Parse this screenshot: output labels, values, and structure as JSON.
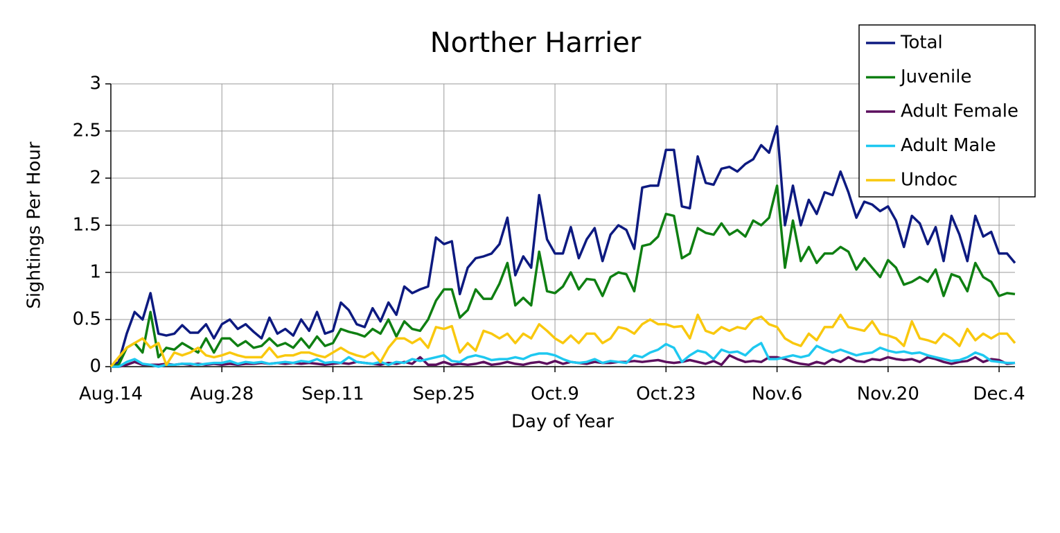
{
  "chart_data": {
    "type": "line",
    "title": "Norther Harrier",
    "x_label": "Day of Year",
    "y_label": "Sightings Per Hour",
    "categories": [
      "Aug.14",
      null,
      null,
      null,
      null,
      null,
      null,
      null,
      null,
      null,
      null,
      null,
      null,
      null,
      "Aug.28",
      null,
      null,
      null,
      null,
      null,
      null,
      null,
      null,
      null,
      null,
      null,
      null,
      null,
      "Sep.11",
      null,
      null,
      null,
      null,
      null,
      null,
      null,
      null,
      null,
      null,
      null,
      null,
      null,
      "Sep.25",
      null,
      null,
      null,
      null,
      null,
      null,
      null,
      null,
      null,
      null,
      null,
      null,
      null,
      "Oct.9",
      null,
      null,
      null,
      null,
      null,
      null,
      null,
      null,
      null,
      null,
      null,
      null,
      null,
      "Oct.23",
      null,
      null,
      null,
      null,
      null,
      null,
      null,
      null,
      null,
      null,
      null,
      null,
      null,
      "Nov.6",
      null,
      null,
      null,
      null,
      null,
      null,
      null,
      null,
      null,
      null,
      null,
      null,
      null,
      "Nov.20",
      null,
      null,
      null,
      null,
      null,
      null,
      null,
      null,
      null,
      null,
      null,
      null,
      null,
      "Dec.4",
      null,
      null
    ],
    "series": [
      {
        "name": "Total",
        "color": "#0d1a80",
        "values": [
          0,
          0.05,
          0.35,
          0.58,
          0.5,
          0.78,
          0.35,
          0.33,
          0.35,
          0.44,
          0.36,
          0.36,
          0.45,
          0.3,
          0.45,
          0.5,
          0.4,
          0.45,
          0.37,
          0.3,
          0.52,
          0.35,
          0.4,
          0.33,
          0.5,
          0.38,
          0.58,
          0.35,
          0.38,
          0.68,
          0.6,
          0.45,
          0.42,
          0.62,
          0.48,
          0.68,
          0.55,
          0.85,
          0.78,
          0.82,
          0.85,
          1.37,
          1.3,
          1.33,
          0.77,
          1.05,
          1.15,
          1.17,
          1.2,
          1.3,
          1.58,
          0.97,
          1.17,
          1.05,
          1.82,
          1.35,
          1.2,
          1.2,
          1.48,
          1.15,
          1.35,
          1.47,
          1.12,
          1.4,
          1.5,
          1.45,
          1.25,
          1.9,
          1.92,
          1.92,
          2.3,
          2.3,
          1.7,
          1.68,
          2.23,
          1.95,
          1.93,
          2.1,
          2.12,
          2.07,
          2.15,
          2.2,
          2.35,
          2.27,
          2.55,
          1.5,
          1.92,
          1.5,
          1.77,
          1.62,
          1.85,
          1.82,
          2.07,
          1.85,
          1.58,
          1.75,
          1.72,
          1.65,
          1.7,
          1.55,
          1.27,
          1.6,
          1.52,
          1.3,
          1.48,
          1.12,
          1.6,
          1.4,
          1.12,
          1.6,
          1.38,
          1.43,
          1.2,
          1.2,
          1.1
        ]
      },
      {
        "name": "Juvenile",
        "color": "#0f7f12",
        "values": [
          0,
          0.02,
          0.2,
          0.25,
          0.15,
          0.58,
          0.1,
          0.2,
          0.18,
          0.25,
          0.2,
          0.15,
          0.3,
          0.15,
          0.3,
          0.3,
          0.22,
          0.27,
          0.2,
          0.22,
          0.3,
          0.22,
          0.25,
          0.2,
          0.3,
          0.2,
          0.32,
          0.22,
          0.25,
          0.4,
          0.37,
          0.35,
          0.32,
          0.4,
          0.35,
          0.5,
          0.32,
          0.48,
          0.4,
          0.38,
          0.5,
          0.7,
          0.82,
          0.82,
          0.52,
          0.6,
          0.82,
          0.72,
          0.72,
          0.88,
          1.1,
          0.65,
          0.73,
          0.65,
          1.22,
          0.8,
          0.78,
          0.85,
          1.0,
          0.82,
          0.93,
          0.92,
          0.75,
          0.95,
          1.0,
          0.98,
          0.8,
          1.28,
          1.3,
          1.38,
          1.62,
          1.6,
          1.15,
          1.2,
          1.47,
          1.42,
          1.4,
          1.52,
          1.4,
          1.45,
          1.38,
          1.55,
          1.5,
          1.58,
          1.92,
          1.05,
          1.55,
          1.12,
          1.27,
          1.1,
          1.2,
          1.2,
          1.27,
          1.22,
          1.03,
          1.15,
          1.05,
          0.95,
          1.13,
          1.05,
          0.87,
          0.9,
          0.95,
          0.9,
          1.03,
          0.75,
          0.98,
          0.95,
          0.8,
          1.1,
          0.95,
          0.9,
          0.75,
          0.78,
          0.77
        ]
      },
      {
        "name": "Adult Female",
        "color": "#5c0f5e",
        "values": [
          0,
          0,
          0.02,
          0.05,
          0.02,
          0.02,
          0.02,
          0.03,
          0.02,
          0.03,
          0.02,
          0.03,
          0.02,
          0.03,
          0.02,
          0.03,
          0.02,
          0.03,
          0.03,
          0.04,
          0.03,
          0.04,
          0.03,
          0.04,
          0.03,
          0.04,
          0.03,
          0.02,
          0.03,
          0.04,
          0.03,
          0.05,
          0.04,
          0.03,
          0.02,
          0.04,
          0.03,
          0.05,
          0.03,
          0.1,
          0.02,
          0.02,
          0.05,
          0.02,
          0.03,
          0.02,
          0.03,
          0.05,
          0.02,
          0.03,
          0.05,
          0.03,
          0.02,
          0.04,
          0.05,
          0.03,
          0.06,
          0.03,
          0.05,
          0.04,
          0.03,
          0.05,
          0.04,
          0.04,
          0.05,
          0.05,
          0.06,
          0.05,
          0.06,
          0.07,
          0.05,
          0.04,
          0.05,
          0.07,
          0.05,
          0.03,
          0.06,
          0.02,
          0.12,
          0.08,
          0.05,
          0.06,
          0.05,
          0.1,
          0.1,
          0.08,
          0.05,
          0.03,
          0.02,
          0.05,
          0.03,
          0.08,
          0.05,
          0.1,
          0.06,
          0.05,
          0.08,
          0.07,
          0.1,
          0.08,
          0.07,
          0.08,
          0.05,
          0.1,
          0.08,
          0.05,
          0.03,
          0.05,
          0.06,
          0.1,
          0.05,
          0.08,
          0.07,
          0.03,
          0.04
        ]
      },
      {
        "name": "Adult Male",
        "color": "#1ec8f0",
        "values": [
          0,
          0,
          0.05,
          0.08,
          0.03,
          0.02,
          0,
          0.02,
          0.02,
          0.03,
          0.03,
          0.02,
          0.03,
          0.04,
          0.04,
          0.06,
          0.03,
          0.05,
          0.04,
          0.05,
          0.03,
          0.04,
          0.05,
          0.04,
          0.06,
          0.05,
          0.08,
          0.04,
          0.05,
          0.04,
          0.1,
          0.05,
          0.04,
          0.03,
          0.05,
          0.02,
          0.05,
          0.04,
          0.08,
          0.06,
          0.08,
          0.1,
          0.12,
          0.06,
          0.05,
          0.1,
          0.12,
          0.1,
          0.07,
          0.08,
          0.08,
          0.1,
          0.08,
          0.12,
          0.14,
          0.14,
          0.12,
          0.08,
          0.05,
          0.04,
          0.05,
          0.08,
          0.04,
          0.06,
          0.05,
          0.04,
          0.12,
          0.1,
          0.15,
          0.18,
          0.24,
          0.2,
          0.05,
          0.12,
          0.17,
          0.15,
          0.08,
          0.18,
          0.15,
          0.16,
          0.12,
          0.2,
          0.25,
          0.08,
          0.08,
          0.1,
          0.12,
          0.1,
          0.12,
          0.22,
          0.18,
          0.15,
          0.18,
          0.15,
          0.12,
          0.14,
          0.15,
          0.2,
          0.17,
          0.15,
          0.16,
          0.14,
          0.15,
          0.12,
          0.1,
          0.08,
          0.06,
          0.07,
          0.1,
          0.15,
          0.12,
          0.06,
          0.05,
          0.04,
          0.04
        ]
      },
      {
        "name": "Undoc",
        "color": "#f9c80e",
        "values": [
          0,
          0.1,
          0.2,
          0.25,
          0.3,
          0.2,
          0.25,
          0.02,
          0.15,
          0.12,
          0.15,
          0.2,
          0.12,
          0.1,
          0.12,
          0.15,
          0.12,
          0.1,
          0.1,
          0.1,
          0.2,
          0.1,
          0.12,
          0.12,
          0.15,
          0.15,
          0.12,
          0.1,
          0.15,
          0.2,
          0.15,
          0.12,
          0.1,
          0.15,
          0.05,
          0.2,
          0.3,
          0.3,
          0.25,
          0.3,
          0.2,
          0.42,
          0.4,
          0.43,
          0.15,
          0.25,
          0.17,
          0.38,
          0.35,
          0.3,
          0.35,
          0.25,
          0.35,
          0.3,
          0.45,
          0.38,
          0.3,
          0.25,
          0.33,
          0.25,
          0.35,
          0.35,
          0.25,
          0.3,
          0.42,
          0.4,
          0.35,
          0.45,
          0.5,
          0.45,
          0.45,
          0.42,
          0.43,
          0.3,
          0.55,
          0.38,
          0.35,
          0.42,
          0.38,
          0.42,
          0.4,
          0.5,
          0.53,
          0.45,
          0.42,
          0.3,
          0.25,
          0.22,
          0.35,
          0.28,
          0.42,
          0.42,
          0.55,
          0.42,
          0.4,
          0.38,
          0.48,
          0.35,
          0.33,
          0.3,
          0.22,
          0.48,
          0.3,
          0.28,
          0.25,
          0.35,
          0.3,
          0.22,
          0.4,
          0.28,
          0.35,
          0.3,
          0.35,
          0.35,
          0.25
        ]
      }
    ],
    "ylim": [
      0,
      3
    ],
    "yticks": [
      0,
      0.5,
      1,
      1.5,
      2,
      2.5,
      3
    ],
    "grid": true,
    "legend": "upper right"
  }
}
